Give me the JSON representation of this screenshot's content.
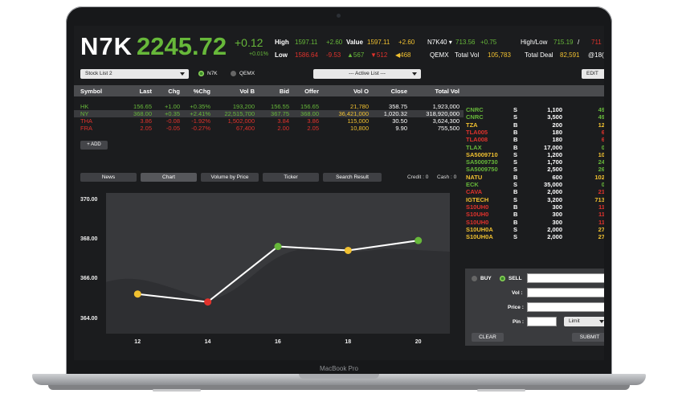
{
  "device": {
    "label": "MacBook Pro"
  },
  "header": {
    "symbol": "N7K",
    "price": "2245.72",
    "change": "+0.12",
    "change_pct": "+0.01%",
    "high_label": "High",
    "high": "1597.11",
    "high_chg": "+2.60",
    "value_label": "Value",
    "value": "1597.11",
    "value_chg": "+2.60",
    "low_label": "Low",
    "low": "1586.64",
    "low_chg": "-9.53",
    "up_count": "567",
    "down_count": "512",
    "unch_count": "468",
    "idx_name": "N7K40",
    "idx_value": "713.56",
    "idx_chg": "+0.75",
    "highlow_label": "High/Low",
    "highlow_value": "715.19",
    "highlow_sep": "/",
    "highlow_value2": "711",
    "qemx_label": "QEMX",
    "total_vol_label": "Total Vol",
    "total_vol": "105,783",
    "total_deal_label": "Total Deal",
    "total_deal": "82,591",
    "at_value": "@18("
  },
  "controls": {
    "stock_list": "Stock List 2",
    "radio_n7k": "N7K",
    "radio_qemx": "QEMX",
    "active_list": "--- Active List ---",
    "edit": "EDIT"
  },
  "table": {
    "headers": [
      "Symbol",
      "Last",
      "Chg",
      "%Chg",
      "Vol B",
      "Bid",
      "Offer",
      "Vol O",
      "Close",
      "Total Vol"
    ],
    "rows": [
      {
        "symbol": "HK",
        "last": "156.65",
        "chg": "+1.00",
        "pct": "+0.35%",
        "volb": "193,200",
        "bid": "156.55",
        "offer": "156.65",
        "volo": "21,780",
        "close": "358.75",
        "total": "1,923,000",
        "color": "#67b83a"
      },
      {
        "symbol": "NY",
        "last": "368.00",
        "chg": "+0.35",
        "pct": "+2.41%",
        "volb": "22,515,700",
        "bid": "367.75",
        "offer": "368.00",
        "volo": "36,421,000",
        "close": "1,020.32",
        "total": "318,920,000",
        "color": "#67b83a"
      },
      {
        "symbol": "THA",
        "last": "3.86",
        "chg": "-0.08",
        "pct": "-1.92%",
        "volb": "1,502,000",
        "bid": "3.84",
        "offer": "3.86",
        "volo": "115,000",
        "close": "30.50",
        "total": "3,624,300",
        "color": "#e0322c"
      },
      {
        "symbol": "FRA",
        "last": "2.05",
        "chg": "-0.05",
        "pct": "-0.27%",
        "volb": "67,400",
        "bid": "2.00",
        "offer": "2.05",
        "volo": "10,800",
        "close": "9.90",
        "total": "755,500",
        "color": "#e0322c"
      }
    ],
    "add_label": "+ ADD"
  },
  "tabs": [
    "News",
    "Chart",
    "Volume by Price",
    "Ticker",
    "Search Result"
  ],
  "credit": {
    "credit": "Credit : 0",
    "cash": "Cash : 0"
  },
  "chart_data": {
    "type": "line",
    "x": [
      12,
      14,
      16,
      18,
      20
    ],
    "y": [
      365.3,
      364.9,
      367.7,
      367.5,
      368.0
    ],
    "point_colors": [
      "#f0c030",
      "#e0322c",
      "#67b83a",
      "#f0c030",
      "#67b83a"
    ],
    "xticks": [
      "12",
      "14",
      "16",
      "18",
      "20"
    ],
    "yticks": [
      "370.00",
      "368.00",
      "366.00",
      "364.00"
    ],
    "ylim": [
      363.3,
      370.4
    ],
    "xlim": [
      11.1,
      20.9
    ]
  },
  "tape": [
    {
      "sym": "CNRC",
      "side": "S",
      "vol": "1,100",
      "price": "49.",
      "color": "#67b83a"
    },
    {
      "sym": "CNRC",
      "side": "S",
      "vol": "3,500",
      "price": "49.",
      "color": "#67b83a"
    },
    {
      "sym": "TZA",
      "side": "B",
      "vol": "200",
      "price": "12.",
      "color": "#f0c030"
    },
    {
      "sym": "TLA005",
      "side": "B",
      "vol": "180",
      "price": "6.",
      "color": "#e0322c"
    },
    {
      "sym": "TLA008",
      "side": "B",
      "vol": "180",
      "price": "6.",
      "color": "#e0322c"
    },
    {
      "sym": "TLAX",
      "side": "B",
      "vol": "17,000",
      "price": "0.",
      "color": "#67b83a"
    },
    {
      "sym": "SA5009710",
      "side": "S",
      "vol": "1,200",
      "price": "10.",
      "color": "#f0c030"
    },
    {
      "sym": "SA5009730",
      "side": "S",
      "vol": "1,700",
      "price": "24.",
      "color": "#67b83a"
    },
    {
      "sym": "SA5009750",
      "side": "S",
      "vol": "2,500",
      "price": "26.",
      "color": "#67b83a"
    },
    {
      "sym": "NATU",
      "side": "B",
      "vol": "600",
      "price": "102.",
      "color": "#f0c030"
    },
    {
      "sym": "ECK",
      "side": "S",
      "vol": "35,000",
      "price": "0.",
      "color": "#67b83a"
    },
    {
      "sym": "CAVA",
      "side": "B",
      "vol": "2,000",
      "price": "21.",
      "color": "#e0322c"
    },
    {
      "sym": "IGTECH",
      "side": "S",
      "vol": "3,200",
      "price": "713.",
      "color": "#f0c030"
    },
    {
      "sym": "S10UH0",
      "side": "B",
      "vol": "300",
      "price": "11.",
      "color": "#e0322c"
    },
    {
      "sym": "S10UH0",
      "side": "B",
      "vol": "300",
      "price": "11.",
      "color": "#e0322c"
    },
    {
      "sym": "S10UH0",
      "side": "B",
      "vol": "300",
      "price": "11.",
      "color": "#e0322c"
    },
    {
      "sym": "S10UH0A",
      "side": "S",
      "vol": "2,000",
      "price": "27.",
      "color": "#f0c030"
    },
    {
      "sym": "S10UH0A",
      "side": "S",
      "vol": "2,000",
      "price": "27.",
      "color": "#f0c030"
    }
  ],
  "order": {
    "buy": "BUY",
    "sell": "SELL",
    "vol_label": "Vol :",
    "price_label": "Price :",
    "pin_label": "Pin :",
    "order_type": "Limit",
    "clear": "CLEAR",
    "submit": "SUBMIT"
  }
}
